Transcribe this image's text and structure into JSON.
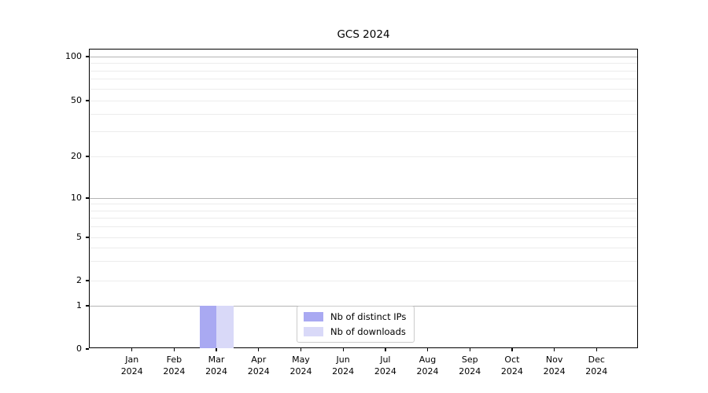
{
  "chart_data": {
    "type": "bar",
    "title": "GCS 2024",
    "categories": [
      "Jan",
      "Feb",
      "Mar",
      "Apr",
      "May",
      "Jun",
      "Jul",
      "Aug",
      "Sep",
      "Oct",
      "Nov",
      "Dec"
    ],
    "x_axis": {
      "year": "2024"
    },
    "series": [
      {
        "name": "Nb of distinct IPs",
        "color": "#a9a9f2",
        "values": [
          0,
          0,
          1,
          0,
          0,
          0,
          0,
          0,
          0,
          0,
          0,
          0
        ]
      },
      {
        "name": "Nb of downloads",
        "color": "#d9d9f8",
        "values": [
          0,
          0,
          1,
          0,
          0,
          0,
          0,
          0,
          0,
          0,
          0,
          0
        ]
      }
    ],
    "y_axis": {
      "ticks": [
        100,
        50,
        20,
        10,
        5,
        2,
        1,
        0
      ],
      "range": [
        0,
        100
      ],
      "scale": "log-like",
      "major_gridlines": [
        100,
        10,
        1
      ],
      "minor_gridlines": [
        90,
        80,
        70,
        60,
        40,
        30,
        9,
        8,
        7,
        6,
        4,
        3
      ]
    },
    "legend": {
      "position": "lower center",
      "entries": [
        "Nb of distinct IPs",
        "Nb of downloads"
      ]
    },
    "grid": true
  }
}
